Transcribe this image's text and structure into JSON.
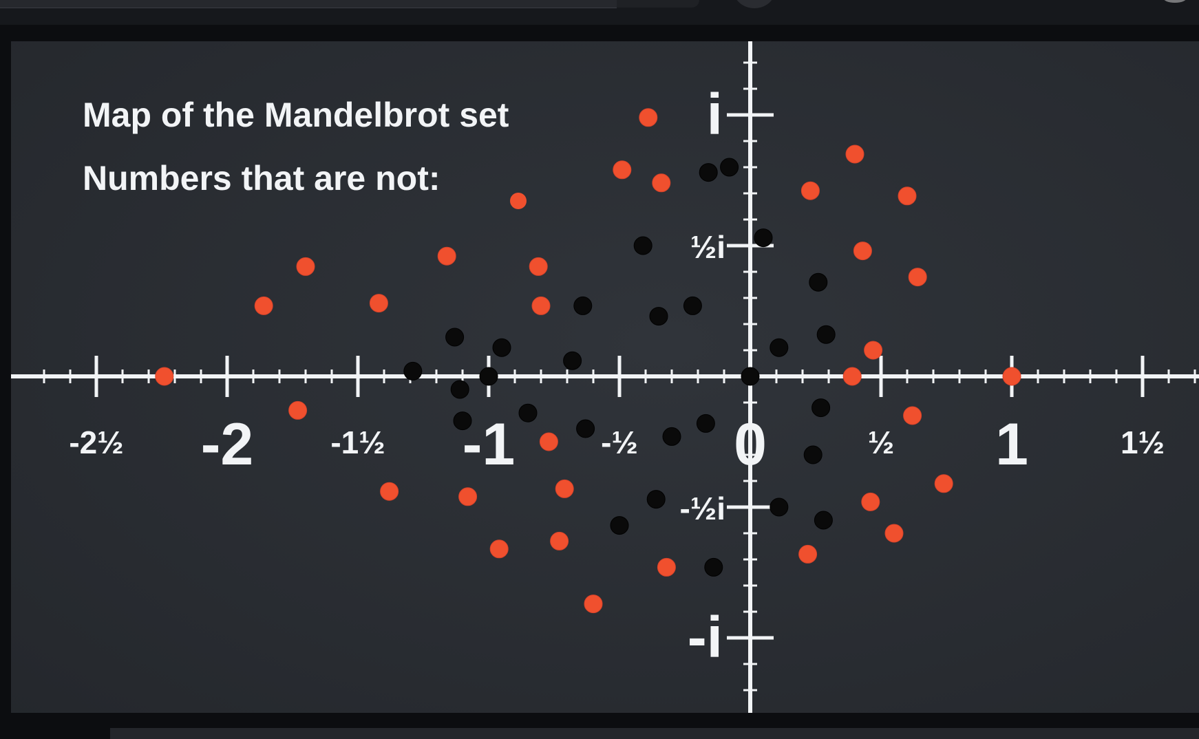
{
  "chart_data": {
    "type": "scatter",
    "title": "Map of the Mandelbrot set",
    "subtitle": "Numbers that are not:",
    "xlim": [
      -2.75,
      1.75
    ],
    "ylim": [
      -1.2,
      1.2
    ],
    "x_ticks": [
      {
        "value": -2.5,
        "label": "-2½"
      },
      {
        "value": -2,
        "label": "-2"
      },
      {
        "value": -1.5,
        "label": "-1½"
      },
      {
        "value": -1,
        "label": "-1"
      },
      {
        "value": -0.5,
        "label": "-½"
      },
      {
        "value": 0,
        "label": "0"
      },
      {
        "value": 0.5,
        "label": "½"
      },
      {
        "value": 1,
        "label": "1"
      },
      {
        "value": 1.5,
        "label": "1½"
      }
    ],
    "y_ticks": [
      {
        "value": 1,
        "label": "i"
      },
      {
        "value": 0.5,
        "label": "½i"
      },
      {
        "value": -0.5,
        "label": "-½i"
      },
      {
        "value": -1,
        "label": "-i"
      }
    ],
    "grid": false,
    "colors": {
      "background": "#2a2d33",
      "axis": "#f2f4f6",
      "text": "#f2f4f6",
      "not_in_set": "#f0502e",
      "in_set": "#0a0a0a"
    },
    "series": [
      {
        "name": "not",
        "color": "#f0502e",
        "points": [
          [
            -0.39,
            0.99
          ],
          [
            -0.49,
            0.79
          ],
          [
            -0.34,
            0.74
          ],
          [
            0.4,
            0.85
          ],
          [
            0.6,
            0.69
          ],
          [
            0.23,
            0.71
          ],
          [
            0.43,
            0.48
          ],
          [
            0.64,
            0.38
          ],
          [
            -1.16,
            0.46
          ],
          [
            -0.81,
            0.42
          ],
          [
            -1.7,
            0.42
          ],
          [
            -1.86,
            0.27
          ],
          [
            -1.42,
            0.28
          ],
          [
            -0.8,
            0.27
          ],
          [
            0.47,
            0.1
          ],
          [
            0.39,
            0.0
          ],
          [
            1.0,
            0.0
          ],
          [
            -2.24,
            0.0
          ],
          [
            0.62,
            -0.15
          ],
          [
            -1.73,
            -0.13
          ],
          [
            -0.77,
            -0.25
          ],
          [
            -1.38,
            -0.44
          ],
          [
            -1.08,
            -0.46
          ],
          [
            -0.71,
            -0.43
          ],
          [
            0.74,
            -0.41
          ],
          [
            0.46,
            -0.48
          ],
          [
            0.55,
            -0.6
          ],
          [
            -0.96,
            -0.66
          ],
          [
            -0.73,
            -0.63
          ],
          [
            -0.32,
            -0.73
          ],
          [
            0.22,
            -0.68
          ],
          [
            -0.6,
            -0.87
          ]
        ]
      },
      {
        "name": "are",
        "color": "#0a0a0a",
        "points": [
          [
            -0.16,
            0.78
          ],
          [
            -0.08,
            0.8
          ],
          [
            -0.41,
            0.5
          ],
          [
            0.05,
            0.53
          ],
          [
            0.26,
            0.36
          ],
          [
            -0.22,
            0.27
          ],
          [
            -0.35,
            0.23
          ],
          [
            -0.64,
            0.27
          ],
          [
            -1.13,
            0.15
          ],
          [
            -0.95,
            0.11
          ],
          [
            -0.68,
            0.06
          ],
          [
            0.29,
            0.16
          ],
          [
            0.11,
            0.11
          ],
          [
            -1.29,
            0.02
          ],
          [
            -1.0,
            0.0
          ],
          [
            0.0,
            0.0
          ],
          [
            -1.11,
            -0.05
          ],
          [
            -1.1,
            -0.17
          ],
          [
            -0.85,
            -0.14
          ],
          [
            -0.63,
            -0.2
          ],
          [
            -0.3,
            -0.23
          ],
          [
            -0.17,
            -0.18
          ],
          [
            0.27,
            -0.12
          ],
          [
            0.24,
            -0.3
          ],
          [
            -0.36,
            -0.47
          ],
          [
            0.11,
            -0.5
          ],
          [
            0.28,
            -0.55
          ],
          [
            -0.5,
            -0.57
          ],
          [
            -0.14,
            -0.73
          ]
        ]
      }
    ]
  }
}
